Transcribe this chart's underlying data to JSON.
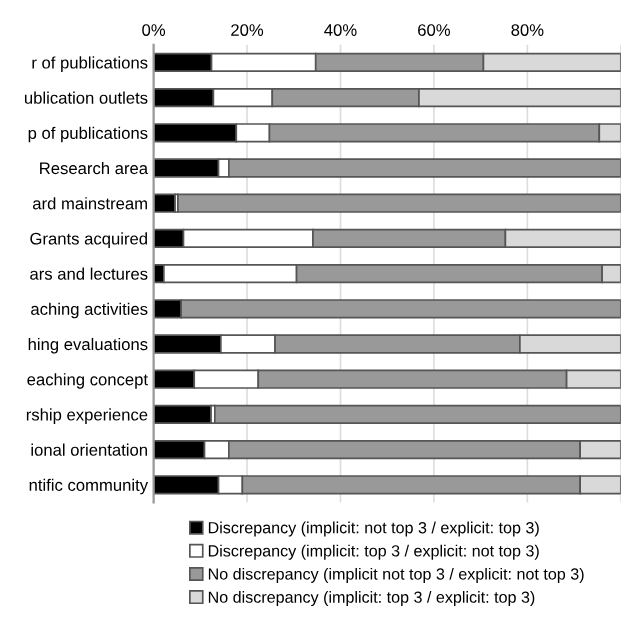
{
  "chart_data": {
    "type": "bar",
    "orientation": "horizontal",
    "stacked": true,
    "categories": [
      "r of publications",
      "ublication outlets",
      "p of publications",
      "Research area",
      "ard mainstream",
      "Grants acquired",
      "ars and lectures",
      "aching activities",
      "hing evaluations",
      "eaching concept",
      "rship experience",
      "ional orientation",
      "ntific community"
    ],
    "series": [
      {
        "name": "Discrepancy (implicit: not top 3 / explicit: top 3)",
        "color": "#000000",
        "values": [
          12.4,
          12.8,
          17.7,
          13.9,
          4.6,
          6.4,
          2.2,
          5.9,
          14.4,
          8.7,
          12.3,
          10.9,
          13.9
        ]
      },
      {
        "name": "Discrepancy (implicit: top 3 / explicit: not top 3)",
        "color": "#ffffff",
        "values": [
          22.3,
          12.6,
          7.1,
          2.2,
          0.6,
          27.7,
          28.4,
          0,
          11.6,
          13.7,
          0.8,
          5.2,
          5.1
        ]
      },
      {
        "name": "No discrepancy (implicit not top 3 / explicit: not top 3)",
        "color": "#999999",
        "values": [
          35.9,
          31.4,
          70.6,
          83.9,
          94.8,
          41.2,
          65.4,
          94.1,
          52.4,
          66.0,
          86.9,
          75.2,
          72.3
        ]
      },
      {
        "name": "No discrepancy (implicit: top 3 / explicit: top 3)",
        "color": "#d9d9d9",
        "values": [
          29.4,
          43.2,
          4.6,
          0,
          0,
          24.7,
          4.0,
          0,
          21.6,
          11.6,
          0,
          8.7,
          8.7
        ]
      }
    ],
    "xlim": [
      0,
      100
    ],
    "xticks": [
      {
        "value": 0,
        "label": "0%"
      },
      {
        "value": 20,
        "label": "20%"
      },
      {
        "value": 40,
        "label": "40%"
      },
      {
        "value": 60,
        "label": "60%"
      },
      {
        "value": 80,
        "label": "80%"
      },
      {
        "value": 100,
        "label": null
      }
    ],
    "grid": "x",
    "legend": "bottom"
  }
}
